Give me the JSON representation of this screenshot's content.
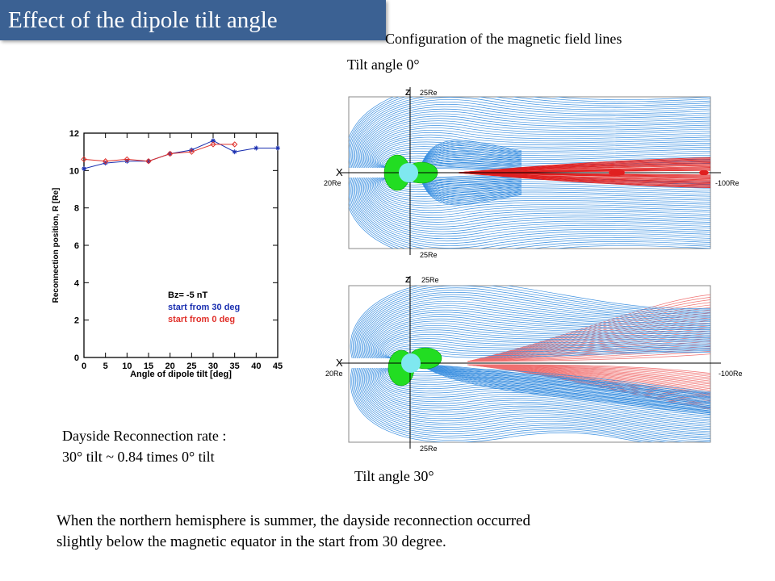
{
  "slide": {
    "title": "Effect of the dipole tilt angle",
    "config_caption": "Configuration of the magnetic field lines",
    "tilt0_caption": "Tilt angle 0°",
    "tilt30_caption": "Tilt angle 30°",
    "rate_line1": "Dayside Reconnection rate :",
    "rate_line2": "30° tilt ~ 0.84 times 0° tilt",
    "bottom_line1": "When the northern hemisphere is summer, the dayside reconnection occurred",
    "bottom_line2": "slightly below the magnetic equator in the start from 30 degree."
  },
  "panels": {
    "top": {
      "z": "Z",
      "x": "X",
      "top_dist": "25Re",
      "bottom_dist": "25Re",
      "left_dist": "20Re",
      "right_dist": "-100Re"
    },
    "bottom": {
      "z": "Z",
      "x": "X",
      "top_dist": "25Re",
      "bottom_dist": "25Re",
      "left_dist": "20Re",
      "right_dist": "-100Re"
    }
  },
  "colors": {
    "title_bar": "#3b6193",
    "series_30": "#1a2fb0",
    "series_0": "#e0302a",
    "field_blue": "#3a8fe0",
    "field_red": "#e02020",
    "field_green": "#22dd22",
    "earth": "#7fe8f0"
  },
  "chart_data": {
    "type": "line",
    "xlabel": "Angle of dipole tilt [deg]",
    "ylabel": "Reconnection position, R [Re]",
    "xlim": [
      0,
      45
    ],
    "ylim": [
      0,
      12
    ],
    "xticks": [
      0,
      5,
      10,
      15,
      20,
      25,
      30,
      35,
      40,
      45
    ],
    "yticks": [
      0,
      2,
      4,
      6,
      8,
      10,
      12
    ],
    "legend_title": "Bz= -5 nT",
    "legend_placement": "bottom-right",
    "series": [
      {
        "name": "start from 30 deg",
        "color": "#1a2fb0",
        "marker": "asterisk",
        "x": [
          0,
          5,
          10,
          15,
          20,
          25,
          30,
          35,
          40,
          45
        ],
        "y": [
          10.1,
          10.4,
          10.5,
          10.5,
          10.9,
          11.1,
          11.6,
          11.0,
          11.2,
          11.2
        ]
      },
      {
        "name": "start from 0 deg",
        "color": "#e0302a",
        "marker": "diamond",
        "x": [
          0,
          5,
          10,
          15,
          20,
          25,
          30,
          35
        ],
        "y": [
          10.6,
          10.5,
          10.6,
          10.5,
          10.9,
          11.0,
          11.4,
          11.4
        ]
      }
    ]
  }
}
